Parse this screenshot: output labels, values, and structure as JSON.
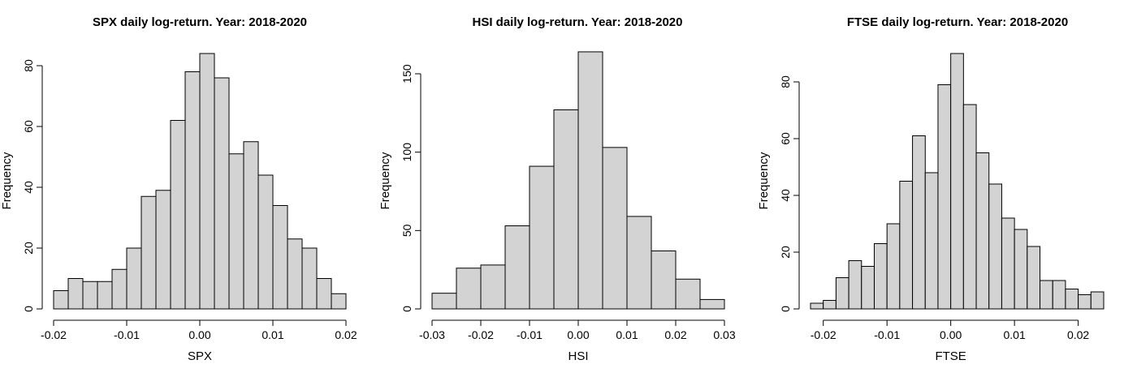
{
  "chart_data": [
    {
      "type": "histogram",
      "title": "SPX daily log-return. Year: 2018-2020",
      "xlabel": "SPX",
      "ylabel": "Frequency",
      "xlim": [
        -0.02,
        0.02
      ],
      "ylim": [
        0,
        80
      ],
      "xticks": [
        -0.02,
        -0.01,
        0.0,
        0.01,
        0.02
      ],
      "xtick_labels": [
        "-0.02",
        "-0.01",
        "0.00",
        "0.01",
        "0.02"
      ],
      "yticks": [
        0,
        20,
        40,
        60,
        80
      ],
      "ytick_labels": [
        "0",
        "20",
        "40",
        "60",
        "80"
      ],
      "bins": [
        {
          "x0": -0.02,
          "x1": -0.018,
          "count": 6
        },
        {
          "x0": -0.018,
          "x1": -0.016,
          "count": 10
        },
        {
          "x0": -0.016,
          "x1": -0.014,
          "count": 9
        },
        {
          "x0": -0.014,
          "x1": -0.012,
          "count": 9
        },
        {
          "x0": -0.012,
          "x1": -0.01,
          "count": 13
        },
        {
          "x0": -0.01,
          "x1": -0.008,
          "count": 20
        },
        {
          "x0": -0.008,
          "x1": -0.006,
          "count": 37
        },
        {
          "x0": -0.006,
          "x1": -0.004,
          "count": 39
        },
        {
          "x0": -0.004,
          "x1": -0.002,
          "count": 62
        },
        {
          "x0": -0.002,
          "x1": 0.0,
          "count": 78
        },
        {
          "x0": 0.0,
          "x1": 0.002,
          "count": 84
        },
        {
          "x0": 0.002,
          "x1": 0.004,
          "count": 76
        },
        {
          "x0": 0.004,
          "x1": 0.006,
          "count": 51
        },
        {
          "x0": 0.006,
          "x1": 0.008,
          "count": 55
        },
        {
          "x0": 0.008,
          "x1": 0.01,
          "count": 44
        },
        {
          "x0": 0.01,
          "x1": 0.012,
          "count": 34
        },
        {
          "x0": 0.012,
          "x1": 0.014,
          "count": 23
        },
        {
          "x0": 0.014,
          "x1": 0.016,
          "count": 20
        },
        {
          "x0": 0.016,
          "x1": 0.018,
          "count": 10
        },
        {
          "x0": 0.018,
          "x1": 0.02,
          "count": 5
        }
      ]
    },
    {
      "type": "histogram",
      "title": "HSI daily log-return. Year: 2018-2020",
      "xlabel": "HSI",
      "ylabel": "Frequency",
      "xlim": [
        -0.03,
        0.03
      ],
      "ylim": [
        0,
        150
      ],
      "xticks": [
        -0.03,
        -0.02,
        -0.01,
        0.0,
        0.01,
        0.02,
        0.03
      ],
      "xtick_labels": [
        "-0.03",
        "-0.02",
        "-0.01",
        "0.00",
        "0.01",
        "0.02",
        "0.03"
      ],
      "yticks": [
        0,
        50,
        100,
        150
      ],
      "ytick_labels": [
        "0",
        "50",
        "100",
        "150"
      ],
      "bins": [
        {
          "x0": -0.03,
          "x1": -0.025,
          "count": 10
        },
        {
          "x0": -0.025,
          "x1": -0.02,
          "count": 26
        },
        {
          "x0": -0.02,
          "x1": -0.015,
          "count": 28
        },
        {
          "x0": -0.015,
          "x1": -0.01,
          "count": 53
        },
        {
          "x0": -0.01,
          "x1": -0.005,
          "count": 91
        },
        {
          "x0": -0.005,
          "x1": 0.0,
          "count": 127
        },
        {
          "x0": 0.0,
          "x1": 0.005,
          "count": 164
        },
        {
          "x0": 0.005,
          "x1": 0.01,
          "count": 103
        },
        {
          "x0": 0.01,
          "x1": 0.015,
          "count": 59
        },
        {
          "x0": 0.015,
          "x1": 0.02,
          "count": 37
        },
        {
          "x0": 0.02,
          "x1": 0.025,
          "count": 19
        },
        {
          "x0": 0.025,
          "x1": 0.03,
          "count": 6
        }
      ]
    },
    {
      "type": "histogram",
      "title": "FTSE daily log-return. Year: 2018-2020",
      "xlabel": "FTSE",
      "ylabel": "Frequency",
      "xlim": [
        -0.022,
        0.024
      ],
      "ylim": [
        0,
        80
      ],
      "xticks": [
        -0.02,
        -0.01,
        0.0,
        0.01,
        0.02
      ],
      "xtick_labels": [
        "-0.02",
        "-0.01",
        "0.00",
        "0.01",
        "0.02"
      ],
      "yticks": [
        0,
        20,
        40,
        60,
        80
      ],
      "ytick_labels": [
        "0",
        "20",
        "40",
        "60",
        "80"
      ],
      "bins": [
        {
          "x0": -0.022,
          "x1": -0.02,
          "count": 2
        },
        {
          "x0": -0.02,
          "x1": -0.018,
          "count": 3
        },
        {
          "x0": -0.018,
          "x1": -0.016,
          "count": 11
        },
        {
          "x0": -0.016,
          "x1": -0.014,
          "count": 17
        },
        {
          "x0": -0.014,
          "x1": -0.012,
          "count": 15
        },
        {
          "x0": -0.012,
          "x1": -0.01,
          "count": 23
        },
        {
          "x0": -0.01,
          "x1": -0.008,
          "count": 30
        },
        {
          "x0": -0.008,
          "x1": -0.006,
          "count": 45
        },
        {
          "x0": -0.006,
          "x1": -0.004,
          "count": 61
        },
        {
          "x0": -0.004,
          "x1": -0.002,
          "count": 48
        },
        {
          "x0": -0.002,
          "x1": 0.0,
          "count": 79
        },
        {
          "x0": 0.0,
          "x1": 0.002,
          "count": 90
        },
        {
          "x0": 0.002,
          "x1": 0.004,
          "count": 72
        },
        {
          "x0": 0.004,
          "x1": 0.006,
          "count": 55
        },
        {
          "x0": 0.006,
          "x1": 0.008,
          "count": 44
        },
        {
          "x0": 0.008,
          "x1": 0.01,
          "count": 32
        },
        {
          "x0": 0.01,
          "x1": 0.012,
          "count": 28
        },
        {
          "x0": 0.012,
          "x1": 0.014,
          "count": 22
        },
        {
          "x0": 0.014,
          "x1": 0.016,
          "count": 10
        },
        {
          "x0": 0.016,
          "x1": 0.018,
          "count": 10
        },
        {
          "x0": 0.018,
          "x1": 0.02,
          "count": 7
        },
        {
          "x0": 0.02,
          "x1": 0.022,
          "count": 5
        },
        {
          "x0": 0.022,
          "x1": 0.024,
          "count": 6
        }
      ]
    }
  ]
}
